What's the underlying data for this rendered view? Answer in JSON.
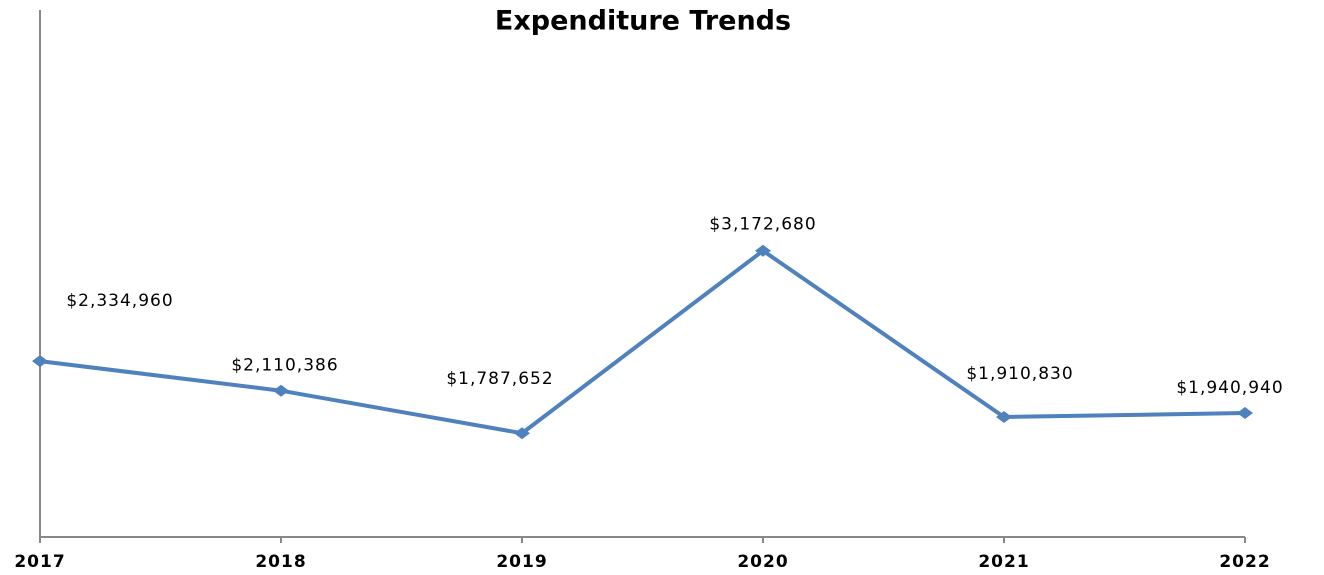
{
  "chart_data": {
    "type": "line",
    "title": "Expenditure Trends",
    "categories": [
      "2017",
      "2018",
      "2019",
      "2020",
      "2021",
      "2022"
    ],
    "series": [
      {
        "name": "Expenditure",
        "color": "#4f81bd",
        "values": [
          2334960,
          2110386,
          1787652,
          3172680,
          1910830,
          1940940
        ],
        "value_labels": [
          "$2,334,960",
          "$2,110,386",
          "$1,787,652",
          "$3,172,680",
          "$1,910,830",
          "$1,940,940"
        ]
      }
    ],
    "ylim": [
      1000000,
      5000000
    ]
  }
}
